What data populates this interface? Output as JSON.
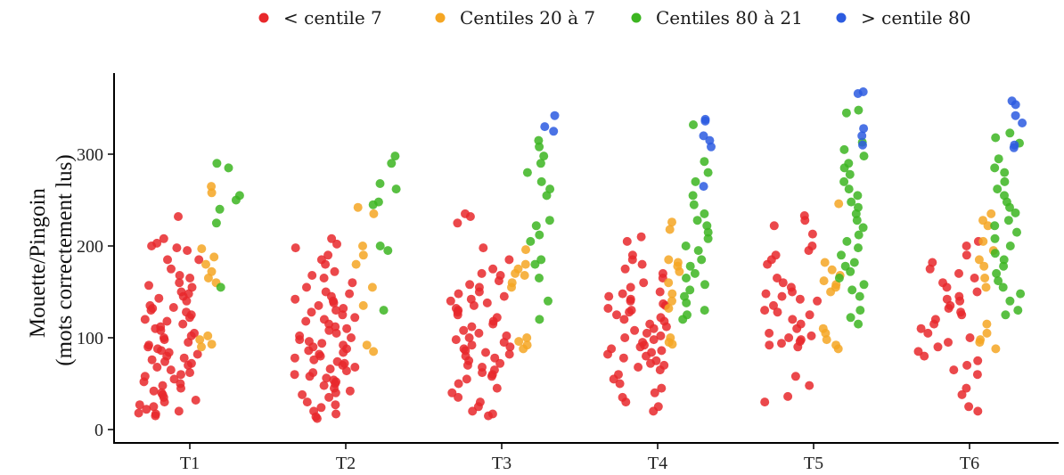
{
  "chart_data": {
    "type": "scatter",
    "title": "",
    "xlabel": "",
    "ylabel": [
      "Mouette/Pingoin",
      "(mots correctement lus)"
    ],
    "categories": [
      "T1",
      "T2",
      "T3",
      "T4",
      "T5",
      "T6"
    ],
    "ylim": [
      -10,
      385
    ],
    "yticks": [
      0,
      100,
      200,
      300
    ],
    "grid": false,
    "legend_position": "top",
    "series": [
      {
        "name": "< centile 7",
        "color": "#e8282b",
        "x_offset_range": [
          -0.33,
          0.06
        ],
        "values": [
          [
            232,
            203,
            198,
            185,
            168,
            160,
            157,
            155,
            150,
            148,
            145,
            143,
            140,
            135,
            133,
            132,
            130,
            128,
            125,
            122,
            120,
            118,
            115,
            112,
            110,
            108,
            105,
            102,
            100,
            98,
            95,
            92,
            90,
            88,
            86,
            84,
            82,
            80,
            78,
            76,
            74,
            72,
            70,
            68,
            65,
            62,
            60,
            58,
            55,
            52,
            50,
            48,
            45,
            42,
            40,
            38,
            35,
            32,
            30,
            27,
            25,
            22,
            20,
            18,
            17,
            15,
            208,
            200,
            195,
            185,
            175,
            165
          ],
          [
            208,
            202,
            198,
            190,
            185,
            180,
            172,
            168,
            165,
            160,
            155,
            150,
            148,
            145,
            142,
            140,
            138,
            135,
            132,
            130,
            128,
            125,
            122,
            120,
            118,
            115,
            112,
            110,
            108,
            105,
            102,
            100,
            98,
            96,
            94,
            92,
            90,
            88,
            86,
            84,
            82,
            80,
            78,
            76,
            74,
            72,
            70,
            68,
            66,
            64,
            62,
            60,
            58,
            56,
            54,
            52,
            50,
            48,
            45,
            42,
            40,
            38,
            35,
            30,
            27,
            24,
            20,
            17,
            14,
            12
          ],
          [
            235,
            232,
            225,
            198,
            185,
            175,
            170,
            168,
            162,
            158,
            155,
            150,
            148,
            145,
            142,
            140,
            138,
            135,
            132,
            130,
            128,
            125,
            122,
            118,
            115,
            112,
            108,
            105,
            102,
            100,
            98,
            95,
            92,
            90,
            88,
            86,
            84,
            82,
            80,
            78,
            75,
            72,
            70,
            68,
            65,
            62,
            60,
            58,
            55,
            50,
            45,
            40,
            35,
            30,
            25,
            20,
            17,
            15
          ],
          [
            210,
            205,
            190,
            185,
            180,
            175,
            170,
            165,
            160,
            155,
            150,
            148,
            145,
            142,
            140,
            137,
            135,
            132,
            130,
            128,
            125,
            122,
            120,
            118,
            115,
            112,
            110,
            108,
            105,
            102,
            100,
            98,
            95,
            92,
            90,
            88,
            86,
            84,
            82,
            80,
            78,
            75,
            72,
            70,
            68,
            65,
            60,
            55,
            50,
            45,
            40,
            35,
            30,
            25,
            20
          ],
          [
            233,
            228,
            222,
            213,
            200,
            195,
            190,
            185,
            180,
            165,
            160,
            155,
            150,
            148,
            145,
            142,
            140,
            135,
            130,
            128,
            125,
            120,
            115,
            110,
            105,
            102,
            100,
            98,
            96,
            94,
            92,
            90,
            58,
            48,
            36,
            30
          ],
          [
            205,
            200,
            190,
            182,
            175,
            170,
            165,
            160,
            155,
            150,
            145,
            142,
            140,
            135,
            132,
            128,
            125,
            120,
            115,
            110,
            105,
            100,
            95,
            90,
            85,
            80,
            75,
            70,
            65,
            60,
            45,
            38,
            25,
            20
          ]
        ]
      },
      {
        "name": "Centiles 20 à 7",
        "color": "#f5a623",
        "x_offset_range": [
          0.06,
          0.18
        ],
        "values": [
          [
            265,
            258,
            197,
            188,
            180,
            172,
            165,
            160,
            102,
            98,
            93,
            90
          ],
          [
            242,
            235,
            200,
            190,
            180,
            155,
            135,
            92,
            85
          ],
          [
            196,
            180,
            175,
            170,
            168,
            160,
            155,
            100,
            96,
            92,
            88
          ],
          [
            226,
            218,
            185,
            182,
            178,
            172,
            160,
            148,
            140,
            132,
            100,
            95,
            93
          ],
          [
            246,
            182,
            174,
            168,
            162,
            158,
            155,
            150,
            110,
            105,
            98,
            92,
            88
          ],
          [
            235,
            228,
            222,
            205,
            195,
            185,
            178,
            165,
            155,
            115,
            105,
            98,
            95,
            88
          ]
        ]
      },
      {
        "name": "Centiles 80 à 21",
        "color": "#3cb521",
        "x_offset_range": [
          0.16,
          0.33
        ],
        "values": [
          [
            290,
            285,
            255,
            250,
            240,
            225,
            155
          ],
          [
            298,
            290,
            268,
            262,
            248,
            245,
            200,
            195,
            130
          ],
          [
            315,
            308,
            298,
            290,
            280,
            270,
            262,
            255,
            228,
            222,
            212,
            205,
            185,
            180,
            165,
            140,
            120
          ],
          [
            332,
            292,
            280,
            270,
            255,
            245,
            235,
            228,
            222,
            215,
            208,
            200,
            195,
            185,
            178,
            170,
            165,
            158,
            152,
            145,
            138,
            130,
            125,
            120
          ],
          [
            348,
            345,
            313,
            305,
            298,
            290,
            285,
            278,
            270,
            262,
            255,
            248,
            242,
            235,
            228,
            220,
            212,
            205,
            198,
            190,
            182,
            178,
            172,
            165,
            158,
            152,
            145,
            130,
            122,
            115
          ],
          [
            323,
            318,
            312,
            295,
            285,
            280,
            270,
            262,
            255,
            248,
            242,
            236,
            228,
            222,
            215,
            208,
            200,
            192,
            185,
            178,
            170,
            162,
            155,
            148,
            140,
            130,
            125
          ]
        ]
      },
      {
        "name": "> centile 80",
        "color": "#2c5be0",
        "x_offset_range": [
          0.27,
          0.35
        ],
        "values": [
          [],
          [],
          [
            342,
            330,
            325
          ],
          [
            338,
            336,
            320,
            315,
            308,
            265
          ],
          [
            368,
            366,
            328,
            320,
            310
          ],
          [
            358,
            354,
            342,
            334,
            310,
            307
          ]
        ]
      }
    ]
  }
}
